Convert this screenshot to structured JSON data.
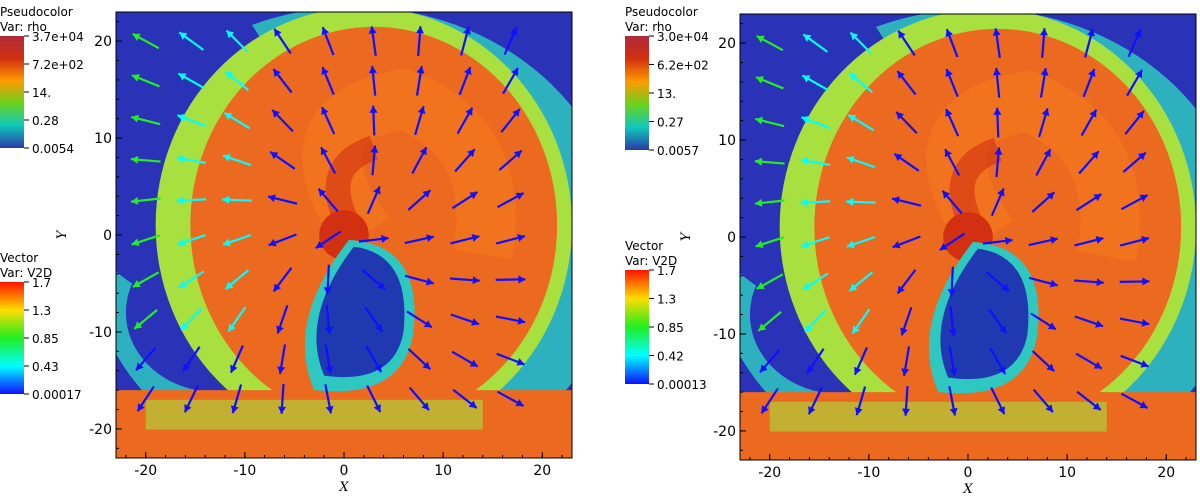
{
  "chart_data": [
    {
      "type": "heatmap",
      "title": "",
      "xlabel": "X",
      "ylabel": "Y",
      "xlim": [
        -23,
        23
      ],
      "ylim": [
        -23,
        23
      ],
      "x_ticks": [
        "-20",
        "-10",
        "0",
        "10",
        "20"
      ],
      "y_ticks": [
        "20",
        "10",
        "0",
        "-10",
        "-20"
      ],
      "legends": [
        {
          "heading": "Pseudocolor",
          "var": "Var: rho",
          "labels": [
            "3.7e+04",
            "7.2e+02",
            "14.",
            "0.28",
            "0.0054"
          ],
          "colors": [
            "#b02a3c",
            "#d23010",
            "#ff9a00",
            "#6ad21c",
            "#10c8bc",
            "#2a3aa8"
          ]
        },
        {
          "heading": "Vector",
          "var": "Var: V2D",
          "labels": [
            "1.7",
            "1.3",
            "0.85",
            "0.43",
            "0.00017"
          ],
          "colors": [
            "#ff1400",
            "#ffdd00",
            "#22ee22",
            "#00ffff",
            "#1010ff"
          ]
        }
      ],
      "density_colors": {
        "background": "#2a33b8",
        "shell_outer": "#2ec8c0",
        "shell_mid": "#a8e040",
        "core": "#ec6a20",
        "core_bright": "#f4781e",
        "center": "#d23010",
        "cavity": "#2038b0"
      }
    },
    {
      "type": "heatmap",
      "title": "",
      "xlabel": "X",
      "ylabel": "Y",
      "xlim": [
        -23,
        23
      ],
      "ylim": [
        -23,
        23
      ],
      "x_ticks": [
        "-20",
        "-10",
        "0",
        "10",
        "20"
      ],
      "y_ticks": [
        "20",
        "10",
        "0",
        "-10",
        "-20"
      ],
      "legends": [
        {
          "heading": "Pseudocolor",
          "var": "Var: rho",
          "labels": [
            "3.0e+04",
            "6.2e+02",
            "13.",
            "0.27",
            "0.0057"
          ],
          "colors": [
            "#b02a3c",
            "#d23010",
            "#ff9a00",
            "#6ad21c",
            "#10c8bc",
            "#2a3aa8"
          ]
        },
        {
          "heading": "Vector",
          "var": "Var: V2D",
          "labels": [
            "1.7",
            "1.3",
            "0.85",
            "0.42",
            "0.00013"
          ],
          "colors": [
            "#ff1400",
            "#ffdd00",
            "#22ee22",
            "#00ffff",
            "#1010ff"
          ]
        }
      ],
      "density_colors": {
        "background": "#2a33b8",
        "shell_outer": "#2ec8c0",
        "shell_mid": "#a8e040",
        "core": "#ec6a20",
        "core_bright": "#f4781e",
        "center": "#d23010",
        "cavity": "#2038b0"
      }
    }
  ]
}
